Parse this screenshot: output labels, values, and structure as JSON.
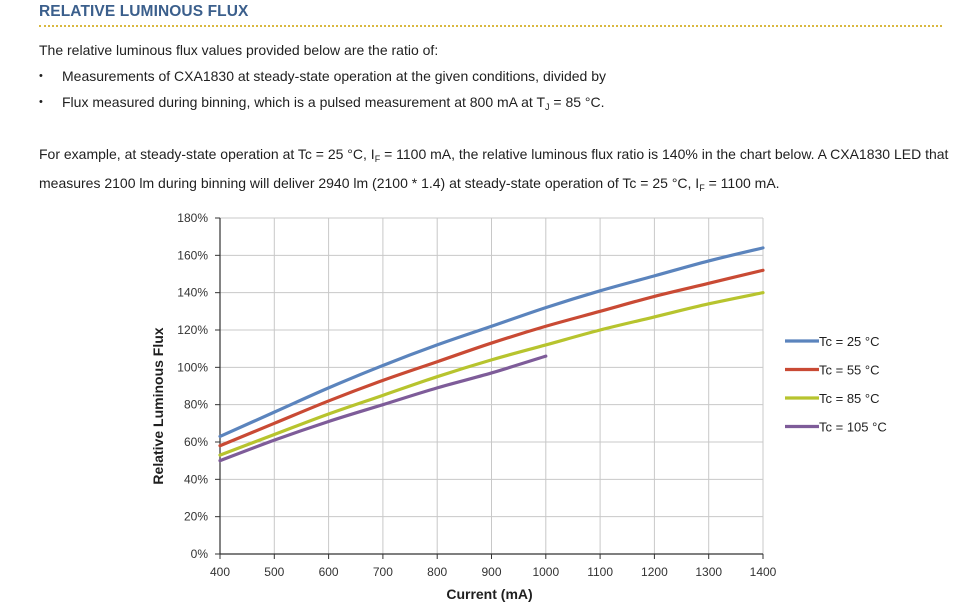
{
  "section": {
    "title": "RELATIVE LUMINOUS FLUX"
  },
  "intro": "The relative luminous flux values provided below are the ratio of:",
  "bullets": {
    "b1": "Measurements of CXA1830 at steady-state operation at the given conditions, divided by",
    "b2_pre": "Flux measured during binning, which is a pulsed measurement at 800 mA at T",
    "b2_sub": "J",
    "b2_post": " = 85 °C."
  },
  "example": {
    "p1": "For example, at steady-state operation at Tc = 25 °C, I",
    "sub1": "F",
    "p2": " = 1100 mA, the relative luminous flux ratio is 140% in the chart below. A CXA1830 LED that measures 2100 lm during binning will deliver 2940 lm (2100 * 1.4) at steady-state operation of Tc = 25 °C, I",
    "sub2": "F",
    "p3": " = 1100 mA."
  },
  "chart_data": {
    "type": "line",
    "xlabel": "Current (mA)",
    "ylabel": "Relative Luminous Flux",
    "xlim": [
      400,
      1400
    ],
    "ylim": [
      0,
      180
    ],
    "xticks": [
      400,
      500,
      600,
      700,
      800,
      900,
      1000,
      1100,
      1200,
      1300,
      1400
    ],
    "yticks": [
      0,
      20,
      40,
      60,
      80,
      100,
      120,
      140,
      160,
      180
    ],
    "ytick_labels": [
      "0%",
      "20%",
      "40%",
      "60%",
      "80%",
      "100%",
      "120%",
      "140%",
      "160%",
      "180%"
    ],
    "grid": true,
    "legend_position": "right",
    "series": [
      {
        "name": "Tc = 25 °C",
        "color": "#5b84bd",
        "x": [
          400,
          500,
          600,
          700,
          800,
          900,
          1000,
          1100,
          1200,
          1300,
          1400
        ],
        "y": [
          63,
          76,
          89,
          101,
          112,
          122,
          132,
          141,
          149,
          157,
          164
        ]
      },
      {
        "name": "Tc = 55 °C",
        "color": "#c94a34",
        "x": [
          400,
          500,
          600,
          700,
          800,
          900,
          1000,
          1100,
          1200,
          1300,
          1400
        ],
        "y": [
          58,
          70,
          82,
          93,
          103,
          113,
          122,
          130,
          138,
          145,
          152
        ]
      },
      {
        "name": "Tc = 85 °C",
        "color": "#b7c42e",
        "x": [
          400,
          500,
          600,
          700,
          800,
          900,
          1000,
          1100,
          1200,
          1300,
          1400
        ],
        "y": [
          53,
          64,
          75,
          85,
          95,
          104,
          112,
          120,
          127,
          134,
          140
        ]
      },
      {
        "name": "Tc = 105 °C",
        "color": "#7e5c99",
        "x": [
          400,
          500,
          600,
          700,
          800,
          900,
          1000
        ],
        "y": [
          50,
          61,
          71,
          80,
          89,
          97,
          106
        ]
      }
    ]
  }
}
